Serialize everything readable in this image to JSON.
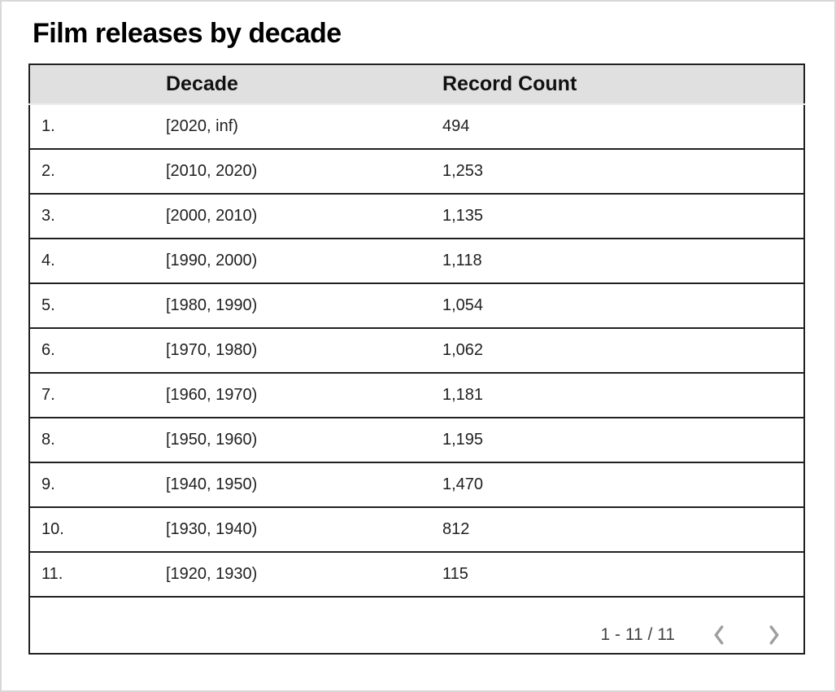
{
  "title": "Film releases by decade",
  "table": {
    "columns": [
      {
        "key": "index",
        "label": ""
      },
      {
        "key": "decade",
        "label": "Decade"
      },
      {
        "key": "count",
        "label": "Record Count"
      }
    ],
    "rows": [
      {
        "index": "1.",
        "decade": "[2020, inf)",
        "count": "494"
      },
      {
        "index": "2.",
        "decade": "[2010, 2020)",
        "count": "1,253"
      },
      {
        "index": "3.",
        "decade": "[2000, 2010)",
        "count": "1,135"
      },
      {
        "index": "4.",
        "decade": "[1990, 2000)",
        "count": "1,118"
      },
      {
        "index": "5.",
        "decade": "[1980, 1990)",
        "count": "1,054"
      },
      {
        "index": "6.",
        "decade": "[1970, 1980)",
        "count": "1,062"
      },
      {
        "index": "7.",
        "decade": "[1960, 1970)",
        "count": "1,181"
      },
      {
        "index": "8.",
        "decade": "[1950, 1960)",
        "count": "1,195"
      },
      {
        "index": "9.",
        "decade": "[1940, 1950)",
        "count": "1,470"
      },
      {
        "index": "10.",
        "decade": "[1930, 1940)",
        "count": "812"
      },
      {
        "index": "11.",
        "decade": "[1920, 1930)",
        "count": "115"
      }
    ]
  },
  "pagination": {
    "range_label": "1 - 11 / 11",
    "prev_icon": "chevron-left",
    "next_icon": "chevron-right"
  },
  "colors": {
    "header_bg": "#e0e0e0",
    "table_border": "#212121",
    "header_divider": "#ededed",
    "title_text": "#000000",
    "cell_text": "#1f1f1f",
    "pager_text": "#424242",
    "chevron": "#9e9e9e",
    "frame_border": "#d8d8d8"
  },
  "chart_data": {
    "type": "table",
    "title": "Film releases by decade",
    "columns": [
      "Decade",
      "Record Count"
    ],
    "rows": [
      [
        "[2020, inf)",
        494
      ],
      [
        "[2010, 2020)",
        1253
      ],
      [
        "[2000, 2010)",
        1135
      ],
      [
        "[1990, 2000)",
        1118
      ],
      [
        "[1980, 1990)",
        1054
      ],
      [
        "[1970, 1980)",
        1062
      ],
      [
        "[1960, 1970)",
        1181
      ],
      [
        "[1950, 1960)",
        1195
      ],
      [
        "[1940, 1950)",
        1470
      ],
      [
        "[1930, 1940)",
        812
      ],
      [
        "[1920, 1930)",
        115
      ]
    ],
    "pagination_visible_range": "1 - 11 / 11"
  }
}
